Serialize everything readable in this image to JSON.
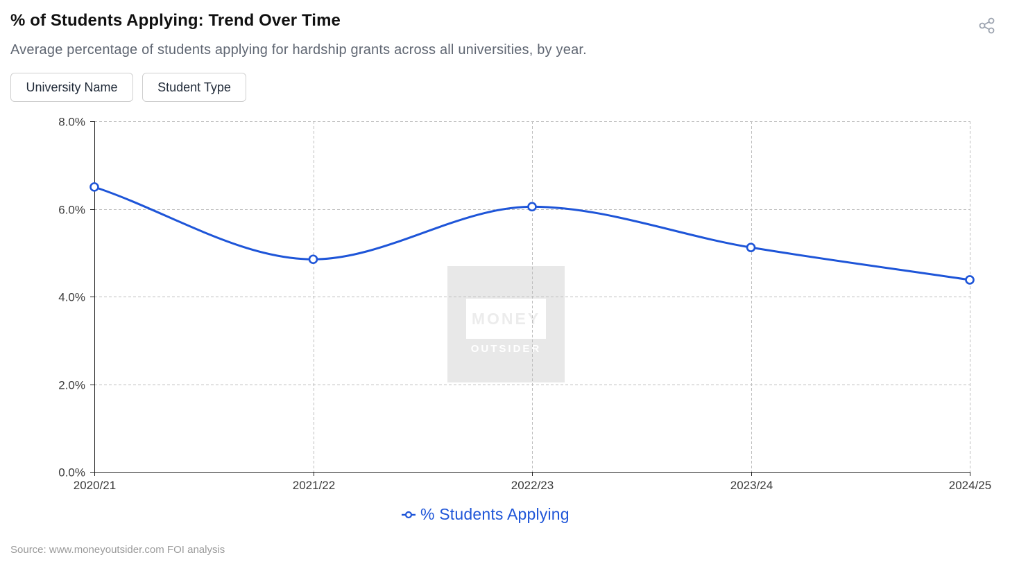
{
  "header": {
    "title": "% of Students Applying: Trend Over Time",
    "subtitle": "Average percentage of students applying for hardship grants across all universities, by year.",
    "share_icon": "share-icon"
  },
  "filters": {
    "university_label": "University Name",
    "student_type_label": "Student Type"
  },
  "watermark": {
    "line1": "MONEY",
    "line2": "OUTSIDER"
  },
  "legend": {
    "label": "% Students Applying"
  },
  "source": "Source: www.moneyoutsider.com FOI analysis",
  "colors": {
    "series": "#1e55d8",
    "grid": "#bdbdbd",
    "axis": "#222222",
    "watermark_bg": "#e8e8e8"
  },
  "chart_data": {
    "type": "line",
    "categories": [
      "2020/21",
      "2021/22",
      "2022/23",
      "2023/24",
      "2024/25"
    ],
    "series": [
      {
        "name": "% Students Applying",
        "values": [
          6.5,
          4.85,
          6.05,
          5.12,
          4.38
        ]
      }
    ],
    "yticks": [
      "0.0%",
      "2.0%",
      "4.0%",
      "6.0%",
      "8.0%"
    ],
    "ylim": [
      0,
      8
    ],
    "y_unit": "%",
    "grid": true,
    "grid_style": "dashed",
    "smooth": true,
    "legend_position": "bottom-center"
  }
}
